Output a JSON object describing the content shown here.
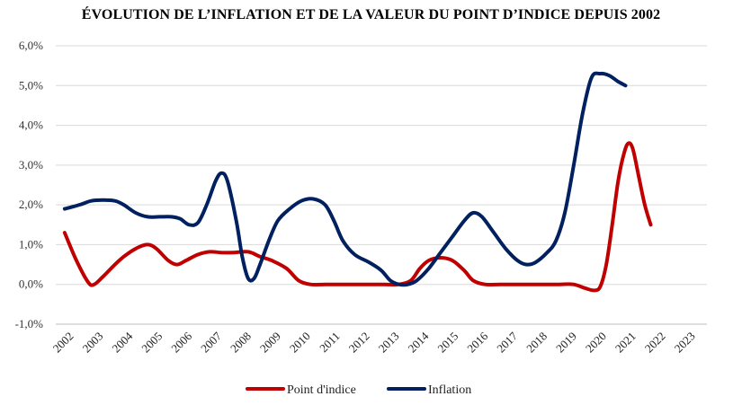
{
  "chart_data": {
    "type": "line",
    "title": "ÉVOLUTION DE L’INFLATION ET DE LA VALEUR DU POINT D’INDICE DEPUIS 2002",
    "xlabel": "",
    "ylabel": "",
    "ylim": [
      -1.0,
      6.0
    ],
    "y_ticks": [
      -1.0,
      0.0,
      1.0,
      2.0,
      3.0,
      4.0,
      5.0,
      6.0
    ],
    "y_tick_labels": [
      "-1,0%",
      "0,0%",
      "1,0%",
      "2,0%",
      "3,0%",
      "4,0%",
      "5,0%",
      "6,0%"
    ],
    "categories": [
      "2002",
      "2003",
      "2004",
      "2005",
      "2006",
      "2007",
      "2008",
      "2009",
      "2010",
      "2011",
      "2012",
      "2013",
      "2014",
      "2015",
      "2016",
      "2017",
      "2018",
      "2019",
      "2020",
      "2021",
      "2022",
      "2023"
    ],
    "grid": "horizontal",
    "legend_position": "bottom",
    "series": [
      {
        "name": "Point d'indice",
        "color": "#c00000",
        "points": [
          [
            2002.0,
            1.3
          ],
          [
            2002.4,
            0.6
          ],
          [
            2002.8,
            0.05
          ],
          [
            2003.0,
            0.0
          ],
          [
            2003.3,
            0.2
          ],
          [
            2003.7,
            0.5
          ],
          [
            2004.0,
            0.7
          ],
          [
            2004.4,
            0.9
          ],
          [
            2004.8,
            1.0
          ],
          [
            2005.1,
            0.9
          ],
          [
            2005.5,
            0.6
          ],
          [
            2005.8,
            0.5
          ],
          [
            2006.1,
            0.6
          ],
          [
            2006.5,
            0.75
          ],
          [
            2006.9,
            0.82
          ],
          [
            2007.3,
            0.8
          ],
          [
            2007.7,
            0.8
          ],
          [
            2008.2,
            0.82
          ],
          [
            2008.6,
            0.7
          ],
          [
            2009.0,
            0.6
          ],
          [
            2009.5,
            0.4
          ],
          [
            2009.9,
            0.1
          ],
          [
            2010.3,
            0.0
          ],
          [
            2010.8,
            0.0
          ],
          [
            2011.3,
            0.0
          ],
          [
            2011.8,
            0.0
          ],
          [
            2012.3,
            0.0
          ],
          [
            2012.8,
            0.0
          ],
          [
            2013.3,
            0.0
          ],
          [
            2013.7,
            0.1
          ],
          [
            2014.0,
            0.4
          ],
          [
            2014.3,
            0.6
          ],
          [
            2014.7,
            0.67
          ],
          [
            2015.1,
            0.6
          ],
          [
            2015.5,
            0.35
          ],
          [
            2015.8,
            0.1
          ],
          [
            2016.2,
            0.0
          ],
          [
            2016.7,
            0.0
          ],
          [
            2017.2,
            0.0
          ],
          [
            2017.7,
            0.0
          ],
          [
            2018.2,
            0.0
          ],
          [
            2018.7,
            0.0
          ],
          [
            2019.2,
            0.0
          ],
          [
            2019.6,
            -0.1
          ],
          [
            2019.9,
            -0.15
          ],
          [
            2020.1,
            -0.05
          ],
          [
            2020.3,
            0.5
          ],
          [
            2020.5,
            1.5
          ],
          [
            2020.7,
            2.6
          ],
          [
            2020.9,
            3.3
          ],
          [
            2021.05,
            3.55
          ],
          [
            2021.2,
            3.4
          ],
          [
            2021.4,
            2.7
          ],
          [
            2021.6,
            2.0
          ],
          [
            2021.8,
            1.5
          ]
        ]
      },
      {
        "name": "Inflation",
        "color": "#002060",
        "points": [
          [
            2002.0,
            1.9
          ],
          [
            2002.5,
            2.0
          ],
          [
            2002.9,
            2.1
          ],
          [
            2003.3,
            2.12
          ],
          [
            2003.7,
            2.1
          ],
          [
            2004.0,
            2.0
          ],
          [
            2004.4,
            1.8
          ],
          [
            2004.8,
            1.7
          ],
          [
            2005.2,
            1.7
          ],
          [
            2005.6,
            1.7
          ],
          [
            2005.9,
            1.65
          ],
          [
            2006.2,
            1.5
          ],
          [
            2006.5,
            1.55
          ],
          [
            2006.8,
            2.0
          ],
          [
            2007.1,
            2.6
          ],
          [
            2007.3,
            2.8
          ],
          [
            2007.5,
            2.6
          ],
          [
            2007.8,
            1.6
          ],
          [
            2008.0,
            0.7
          ],
          [
            2008.2,
            0.15
          ],
          [
            2008.4,
            0.15
          ],
          [
            2008.6,
            0.5
          ],
          [
            2008.9,
            1.1
          ],
          [
            2009.2,
            1.6
          ],
          [
            2009.6,
            1.9
          ],
          [
            2010.0,
            2.1
          ],
          [
            2010.4,
            2.15
          ],
          [
            2010.8,
            2.0
          ],
          [
            2011.1,
            1.6
          ],
          [
            2011.4,
            1.1
          ],
          [
            2011.8,
            0.75
          ],
          [
            2012.3,
            0.55
          ],
          [
            2012.7,
            0.35
          ],
          [
            2013.0,
            0.1
          ],
          [
            2013.3,
            0.0
          ],
          [
            2013.6,
            0.0
          ],
          [
            2013.9,
            0.1
          ],
          [
            2014.3,
            0.4
          ],
          [
            2014.7,
            0.8
          ],
          [
            2015.1,
            1.2
          ],
          [
            2015.5,
            1.6
          ],
          [
            2015.8,
            1.8
          ],
          [
            2016.1,
            1.7
          ],
          [
            2016.5,
            1.3
          ],
          [
            2016.9,
            0.9
          ],
          [
            2017.3,
            0.6
          ],
          [
            2017.6,
            0.5
          ],
          [
            2017.9,
            0.55
          ],
          [
            2018.3,
            0.8
          ],
          [
            2018.6,
            1.1
          ],
          [
            2018.9,
            1.8
          ],
          [
            2019.2,
            3.0
          ],
          [
            2019.5,
            4.3
          ],
          [
            2019.8,
            5.2
          ],
          [
            2020.1,
            5.3
          ],
          [
            2020.4,
            5.25
          ],
          [
            2020.7,
            5.1
          ],
          [
            2020.95,
            5.0
          ]
        ]
      }
    ]
  }
}
